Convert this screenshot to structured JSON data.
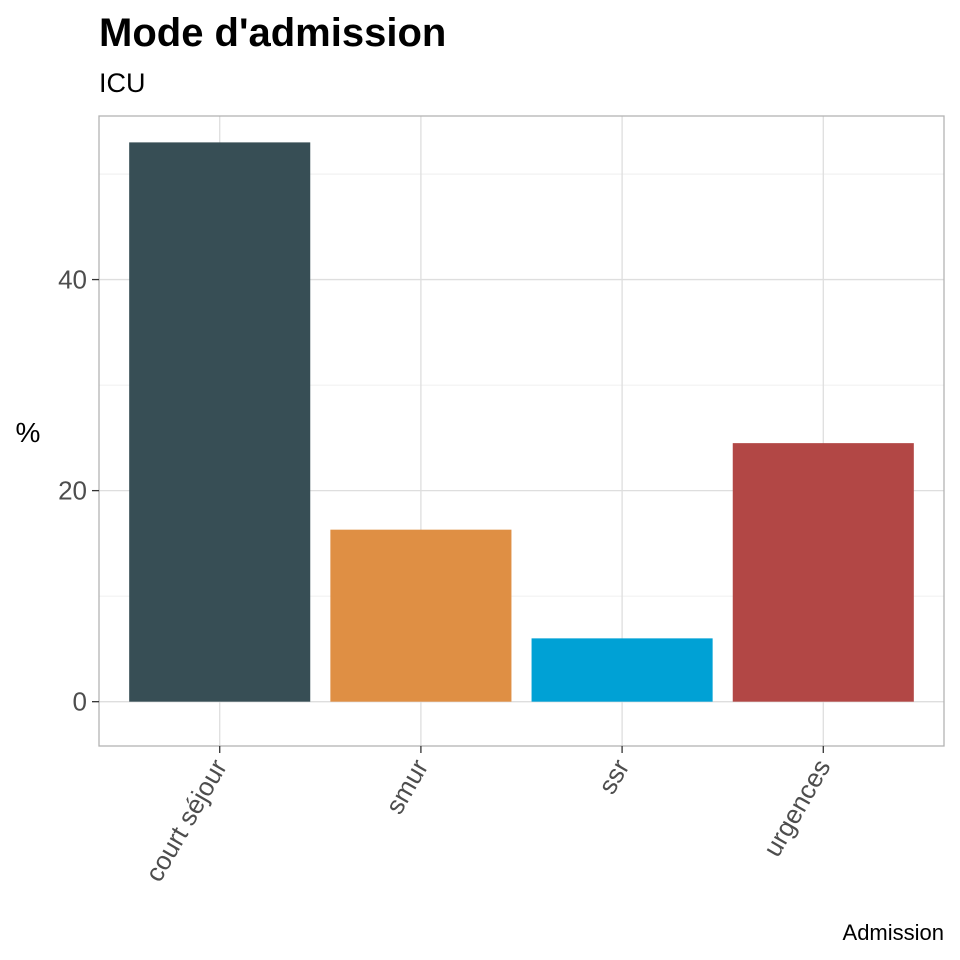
{
  "chart_data": {
    "type": "bar",
    "title": "Mode d'admission",
    "subtitle": "ICU",
    "xlabel": "Admission",
    "ylabel": "%",
    "categories": [
      "court séjour",
      "smur",
      "ssr",
      "urgences"
    ],
    "values": [
      53.0,
      16.3,
      6.0,
      24.5
    ],
    "colors": [
      "#374e55",
      "#df8f44",
      "#00a1d5",
      "#b24745"
    ],
    "ylim": [
      -4.2,
      55.5
    ],
    "yticks": [
      0,
      20,
      40
    ],
    "grid": true,
    "legend": "none"
  }
}
